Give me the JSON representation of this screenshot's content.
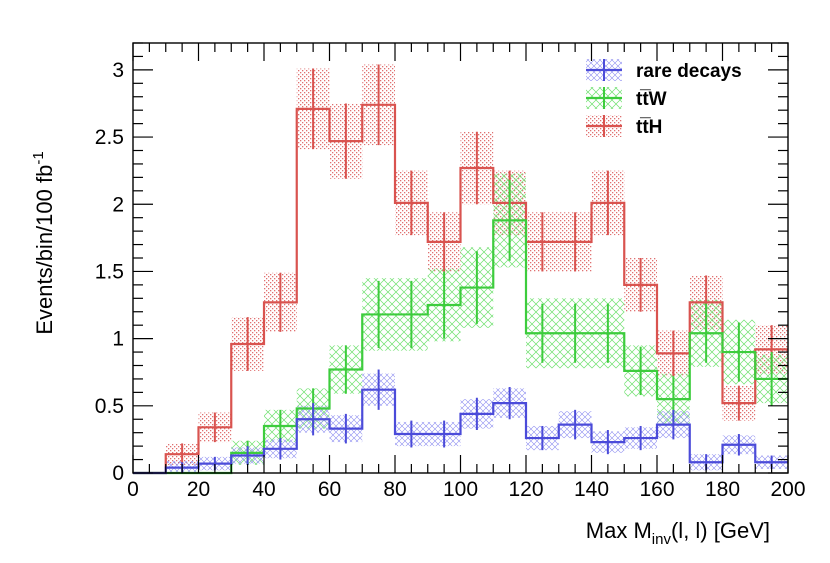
{
  "chart_data": {
    "type": "histogram",
    "title": "",
    "xlabel": {
      "main": "Max M",
      "sub": "inv",
      "rest": "(l, l) [GeV]"
    },
    "ylabel": {
      "main": "Events/bin/100 fb",
      "sup": "-1"
    },
    "xlim": [
      0,
      200
    ],
    "ylim": [
      0,
      3.2
    ],
    "x_ticks": [
      0,
      20,
      40,
      60,
      80,
      100,
      120,
      140,
      160,
      180,
      200
    ],
    "x_tick_labels": [
      "0",
      "20",
      "40",
      "60",
      "80",
      "100",
      "120",
      "140",
      "160",
      "180",
      "200"
    ],
    "y_ticks": [
      0,
      0.5,
      1,
      1.5,
      2,
      2.5,
      3
    ],
    "y_tick_labels": [
      "0",
      "0.5",
      "1",
      "1.5",
      "2",
      "2.5",
      "3"
    ],
    "bin_edges": [
      0,
      10,
      20,
      30,
      40,
      50,
      60,
      70,
      80,
      90,
      100,
      110,
      120,
      130,
      140,
      150,
      160,
      170,
      180,
      190,
      200
    ],
    "legend_position": "top-right",
    "series": [
      {
        "name": "rare decays",
        "color": "#4b4bd9",
        "band": "hatch-blue",
        "values": [
          0,
          0.04,
          0.07,
          0.13,
          0.18,
          0.4,
          0.33,
          0.62,
          0.29,
          0.29,
          0.44,
          0.52,
          0.26,
          0.36,
          0.23,
          0.26,
          0.36,
          0.08,
          0.21,
          0.08
        ],
        "errors": [
          0,
          0.04,
          0.05,
          0.07,
          0.08,
          0.12,
          0.11,
          0.15,
          0.1,
          0.1,
          0.12,
          0.12,
          0.09,
          0.11,
          0.09,
          0.09,
          0.11,
          0.06,
          0.08,
          0.05
        ],
        "band_errors": [
          0,
          0.05,
          0.05,
          0.06,
          0.07,
          0.1,
          0.1,
          0.12,
          0.09,
          0.09,
          0.11,
          0.11,
          0.09,
          0.1,
          0.08,
          0.08,
          0.1,
          0.06,
          0.07,
          0.05
        ]
      },
      {
        "name": "tt̅W",
        "color": "#3dcc3d",
        "band": "hatch-green",
        "values": [
          0,
          0,
          0,
          0.15,
          0.35,
          0.48,
          0.77,
          1.18,
          1.18,
          1.25,
          1.38,
          1.88,
          1.04,
          1.04,
          1.04,
          0.76,
          0.55,
          1.04,
          0.9,
          0.7
        ],
        "errors": [
          0,
          0,
          0,
          0.09,
          0.12,
          0.15,
          0.18,
          0.25,
          0.25,
          0.25,
          0.27,
          0.3,
          0.22,
          0.22,
          0.22,
          0.18,
          0.17,
          0.22,
          0.22,
          0.2
        ],
        "band_errors": [
          0,
          0,
          0,
          0.09,
          0.12,
          0.15,
          0.18,
          0.27,
          0.27,
          0.27,
          0.3,
          0.35,
          0.26,
          0.26,
          0.26,
          0.19,
          0.19,
          0.25,
          0.24,
          0.18
        ]
      },
      {
        "name": "tt̅H",
        "color": "#d9534f",
        "band": "dots-red",
        "values": [
          0,
          0.14,
          0.34,
          0.96,
          1.27,
          2.71,
          2.47,
          2.74,
          2.01,
          1.72,
          2.27,
          2.01,
          1.72,
          1.72,
          2.01,
          1.4,
          0.89,
          1.27,
          0.52,
          0.92
        ],
        "errors": [
          0,
          0.08,
          0.11,
          0.2,
          0.22,
          0.3,
          0.28,
          0.3,
          0.24,
          0.22,
          0.27,
          0.24,
          0.22,
          0.22,
          0.24,
          0.2,
          0.17,
          0.2,
          0.13,
          0.18
        ],
        "band_errors": [
          0,
          0.08,
          0.11,
          0.2,
          0.22,
          0.3,
          0.28,
          0.3,
          0.24,
          0.22,
          0.27,
          0.24,
          0.22,
          0.22,
          0.24,
          0.2,
          0.17,
          0.2,
          0.13,
          0.18
        ]
      }
    ]
  }
}
